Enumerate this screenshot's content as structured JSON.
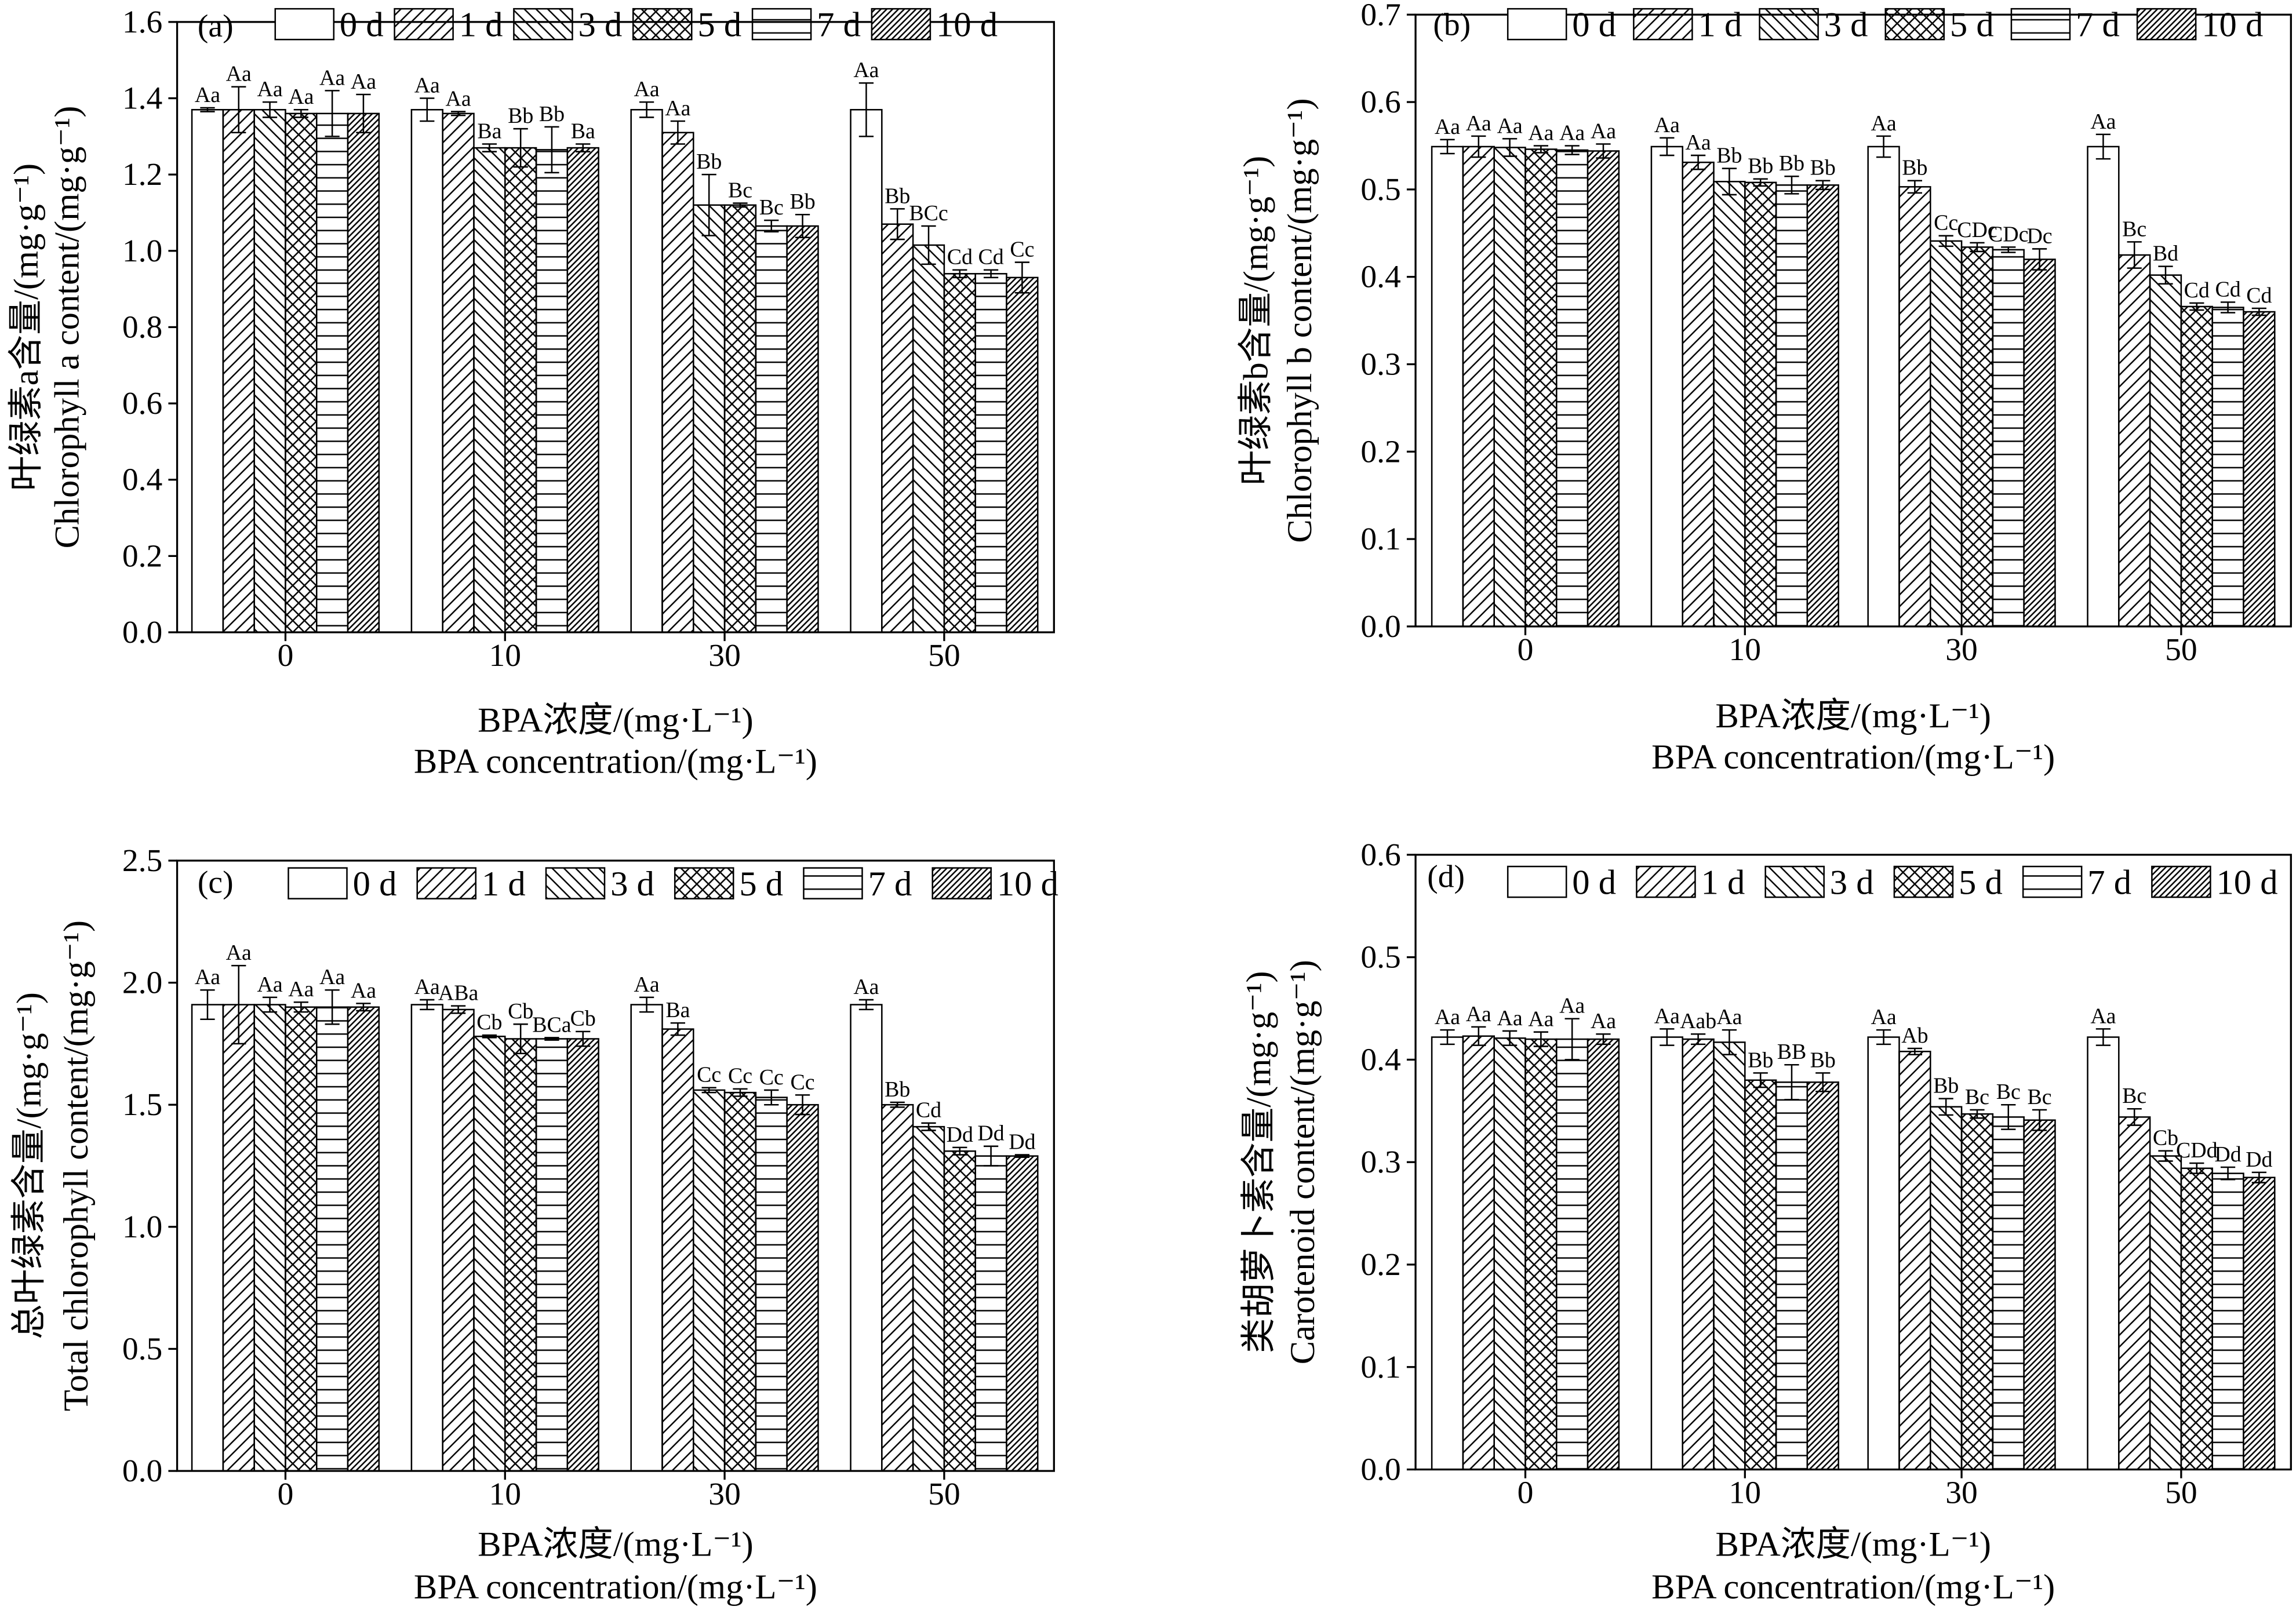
{
  "chart_data": [
    {
      "type": "bar",
      "panel": "(a)",
      "categories": [
        "0",
        "10",
        "30",
        "50"
      ],
      "xlabel": [
        "BPA浓度/(mg·L⁻¹)",
        "BPA concentration/(mg·L⁻¹)"
      ],
      "ylabel": [
        "叶绿素a含量/(mg·g⁻¹)",
        "Chlorophyll a content/(mg·g⁻¹)"
      ],
      "ylim": [
        0,
        1.6
      ],
      "yticks": [
        "0.0",
        "0.2",
        "0.4",
        "0.6",
        "0.8",
        "1.0",
        "1.2",
        "1.4",
        "1.6"
      ],
      "grid": false,
      "legend": "top",
      "series": [
        {
          "name": "0 d",
          "fill": "none",
          "values": [
            1.37,
            1.37,
            1.37,
            1.37
          ],
          "errors": [
            0.005,
            0.03,
            0.02,
            0.07
          ],
          "labels": [
            "Aa",
            "Aa",
            "Aa",
            "Aa"
          ]
        },
        {
          "name": "1 d",
          "fill": "forward-diagonal",
          "values": [
            1.37,
            1.36,
            1.31,
            1.07
          ],
          "errors": [
            0.06,
            0.005,
            0.03,
            0.04
          ],
          "labels": [
            "Aa",
            "Aa",
            "Aa",
            "Bb"
          ]
        },
        {
          "name": "3 d",
          "fill": "back-diagonal",
          "values": [
            1.37,
            1.27,
            1.12,
            1.015
          ],
          "errors": [
            0.02,
            0.01,
            0.08,
            0.05
          ],
          "labels": [
            "Aa",
            "Ba",
            "Bb",
            "BCc"
          ]
        },
        {
          "name": "5 d",
          "fill": "crosshatch",
          "values": [
            1.36,
            1.27,
            1.12,
            0.94
          ],
          "errors": [
            0.01,
            0.05,
            0.005,
            0.01
          ],
          "labels": [
            "Aa",
            "Bb",
            "Bc",
            "Cd"
          ]
        },
        {
          "name": "7 d",
          "fill": "horizontal",
          "values": [
            1.36,
            1.265,
            1.065,
            0.94
          ],
          "errors": [
            0.06,
            0.06,
            0.015,
            0.01
          ],
          "labels": [
            "Aa",
            "Bb",
            "Bc",
            "Cd"
          ]
        },
        {
          "name": "10 d",
          "fill": "dense-diagonal",
          "values": [
            1.36,
            1.27,
            1.065,
            0.93
          ],
          "errors": [
            0.05,
            0.01,
            0.03,
            0.04
          ],
          "labels": [
            "Aa",
            "Ba",
            "Bb",
            "Cc"
          ]
        }
      ]
    },
    {
      "type": "bar",
      "panel": "(b)",
      "categories": [
        "0",
        "10",
        "30",
        "50"
      ],
      "xlabel": [
        "BPA浓度/(mg·L⁻¹)",
        "BPA concentration/(mg·L⁻¹)"
      ],
      "ylabel": [
        "叶绿素b含量/(mg·g⁻¹)",
        "Chlorophyll b content/(mg·g⁻¹)"
      ],
      "ylim": [
        0,
        0.7
      ],
      "yticks": [
        "0.0",
        "0.1",
        "0.2",
        "0.3",
        "0.4",
        "0.5",
        "0.6",
        "0.7"
      ],
      "grid": false,
      "legend": "top",
      "series": [
        {
          "name": "0 d",
          "fill": "none",
          "values": [
            0.549,
            0.549,
            0.549,
            0.549
          ],
          "errors": [
            0.008,
            0.01,
            0.012,
            0.014
          ],
          "labels": [
            "Aa",
            "Aa",
            "Aa",
            "Aa"
          ]
        },
        {
          "name": "1 d",
          "fill": "forward-diagonal",
          "values": [
            0.549,
            0.531,
            0.503,
            0.425
          ],
          "errors": [
            0.012,
            0.008,
            0.007,
            0.015
          ],
          "labels": [
            "Aa",
            "Aa",
            "Bb",
            "Bc"
          ]
        },
        {
          "name": "3 d",
          "fill": "back-diagonal",
          "values": [
            0.548,
            0.509,
            0.441,
            0.402
          ],
          "errors": [
            0.01,
            0.015,
            0.006,
            0.01
          ],
          "labels": [
            "Aa",
            "Bb",
            "Cc",
            "Bd"
          ]
        },
        {
          "name": "5 d",
          "fill": "crosshatch",
          "values": [
            0.546,
            0.508,
            0.434,
            0.366
          ],
          "errors": [
            0.004,
            0.004,
            0.005,
            0.004
          ],
          "labels": [
            "Aa",
            "Bb",
            "CDc",
            "Cd"
          ]
        },
        {
          "name": "7 d",
          "fill": "horizontal",
          "values": [
            0.545,
            0.505,
            0.431,
            0.365
          ],
          "errors": [
            0.005,
            0.01,
            0.003,
            0.006
          ],
          "labels": [
            "Aa",
            "Bb",
            "CDc",
            "Cd"
          ]
        },
        {
          "name": "10 d",
          "fill": "dense-diagonal",
          "values": [
            0.544,
            0.505,
            0.42,
            0.36
          ],
          "errors": [
            0.008,
            0.005,
            0.012,
            0.004
          ],
          "labels": [
            "Aa",
            "Bb",
            "Dc",
            "Cd"
          ]
        }
      ]
    },
    {
      "type": "bar",
      "panel": "(c)",
      "categories": [
        "0",
        "10",
        "30",
        "50"
      ],
      "xlabel": [
        "BPA浓度/(mg·L⁻¹)",
        "BPA concentration/(mg·L⁻¹)"
      ],
      "ylabel": [
        "总叶绿素含量/(mg·g⁻¹)",
        "Total chlorophyll content/(mg·g⁻¹)"
      ],
      "ylim": [
        0,
        2.5
      ],
      "yticks": [
        "0.0",
        "0.5",
        "1.0",
        "1.5",
        "2.0",
        "2.5"
      ],
      "grid": false,
      "legend": "top",
      "series": [
        {
          "name": "0 d",
          "fill": "none",
          "values": [
            1.91,
            1.91,
            1.91,
            1.91
          ],
          "errors": [
            0.06,
            0.02,
            0.03,
            0.02
          ],
          "labels": [
            "Aa",
            "Aa",
            "Aa",
            "Aa"
          ]
        },
        {
          "name": "1 d",
          "fill": "forward-diagonal",
          "values": [
            1.91,
            1.89,
            1.81,
            1.5
          ],
          "errors": [
            0.16,
            0.015,
            0.025,
            0.01
          ],
          "labels": [
            "Aa",
            "ABa",
            "Ba",
            "Bb"
          ]
        },
        {
          "name": "3 d",
          "fill": "back-diagonal",
          "values": [
            1.91,
            1.78,
            1.56,
            1.41
          ],
          "errors": [
            0.03,
            0.005,
            0.01,
            0.015
          ],
          "labels": [
            "Aa",
            "Cb",
            "Cc",
            "Cd"
          ]
        },
        {
          "name": "5 d",
          "fill": "crosshatch",
          "values": [
            1.9,
            1.77,
            1.55,
            1.31
          ],
          "errors": [
            0.02,
            0.06,
            0.015,
            0.015
          ],
          "labels": [
            "Aa",
            "Cb",
            "Cc",
            "Dd"
          ]
        },
        {
          "name": "7 d",
          "fill": "horizontal",
          "values": [
            1.9,
            1.77,
            1.53,
            1.29
          ],
          "errors": [
            0.07,
            0.005,
            0.03,
            0.04
          ],
          "labels": [
            "Aa",
            "BCa",
            "Cc",
            "Dd"
          ]
        },
        {
          "name": "10 d",
          "fill": "dense-diagonal",
          "values": [
            1.9,
            1.77,
            1.5,
            1.29
          ],
          "errors": [
            0.015,
            0.03,
            0.04,
            0.005
          ],
          "labels": [
            "Aa",
            "Cb",
            "Cc",
            "Dd"
          ]
        }
      ]
    },
    {
      "type": "bar",
      "panel": "(d)",
      "categories": [
        "0",
        "10",
        "30",
        "50"
      ],
      "xlabel": [
        "BPA浓度/(mg·L⁻¹)",
        "BPA concentration/(mg·L⁻¹)"
      ],
      "ylabel": [
        "类胡萝卜素含量/(mg·g⁻¹)",
        "Carotenoid content/(mg·g⁻¹)"
      ],
      "ylim": [
        0,
        0.6
      ],
      "yticks": [
        "0.0",
        "0.1",
        "0.2",
        "0.3",
        "0.4",
        "0.5",
        "0.6"
      ],
      "grid": false,
      "legend": "top",
      "series": [
        {
          "name": "0 d",
          "fill": "none",
          "values": [
            0.422,
            0.422,
            0.422,
            0.422
          ],
          "errors": [
            0.007,
            0.008,
            0.007,
            0.008
          ],
          "labels": [
            "Aa",
            "Aa",
            "Aa",
            "Aa"
          ]
        },
        {
          "name": "1 d",
          "fill": "forward-diagonal",
          "values": [
            0.423,
            0.42,
            0.408,
            0.344
          ],
          "errors": [
            0.009,
            0.005,
            0.003,
            0.008
          ],
          "labels": [
            "Aa",
            "Aab",
            "Ab",
            "Bc"
          ]
        },
        {
          "name": "3 d",
          "fill": "back-diagonal",
          "values": [
            0.421,
            0.417,
            0.354,
            0.306
          ],
          "errors": [
            0.007,
            0.012,
            0.008,
            0.005
          ],
          "labels": [
            "Aa",
            "Aa",
            "Bb",
            "Cb"
          ]
        },
        {
          "name": "5 d",
          "fill": "crosshatch",
          "values": [
            0.42,
            0.38,
            0.347,
            0.294
          ],
          "errors": [
            0.007,
            0.007,
            0.004,
            0.005
          ],
          "labels": [
            "Aa",
            "Bb",
            "Bc",
            "CDd"
          ]
        },
        {
          "name": "7 d",
          "fill": "horizontal",
          "values": [
            0.42,
            0.378,
            0.344,
            0.289
          ],
          "errors": [
            0.02,
            0.017,
            0.012,
            0.006
          ],
          "labels": [
            "Aa",
            "BB",
            "Bc",
            "Dd"
          ]
        },
        {
          "name": "10 d",
          "fill": "dense-diagonal",
          "values": [
            0.42,
            0.378,
            0.341,
            0.285
          ],
          "errors": [
            0.005,
            0.009,
            0.01,
            0.005
          ],
          "labels": [
            "Aa",
            "Bb",
            "Bc",
            "Dd"
          ]
        }
      ]
    }
  ]
}
